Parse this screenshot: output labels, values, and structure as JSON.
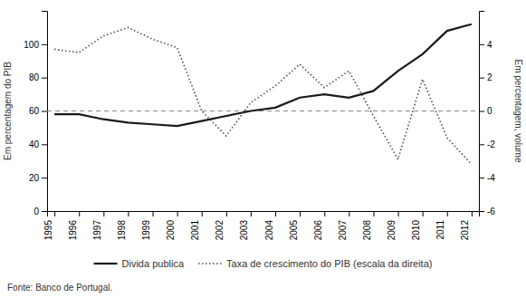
{
  "chart_data": {
    "type": "line",
    "x": [
      1995,
      1996,
      1997,
      1998,
      1999,
      2000,
      2001,
      2002,
      2003,
      2004,
      2005,
      2006,
      2007,
      2008,
      2009,
      2010,
      2011,
      2012
    ],
    "series": [
      {
        "name": "Divida publica",
        "color": "#1a1a1a",
        "line_style": "solid",
        "values": [
          58,
          58,
          55,
          53,
          52,
          51,
          54,
          57,
          60,
          62,
          68,
          70,
          68,
          72,
          84,
          94,
          108,
          112
        ]
      },
      {
        "name": "Taxa de crescimento do PIB (escala da direita)",
        "color": "#4a4a6a",
        "line_style": "dotted",
        "axis": "y2",
        "values": [
          3.7,
          3.5,
          4.5,
          5.0,
          4.3,
          3.8,
          0.0,
          -1.5,
          0.5,
          1.5,
          2.8,
          1.4,
          2.4,
          -0.3,
          -2.9,
          1.9,
          -1.6,
          -3.2
        ]
      }
    ],
    "ylabel": "Em percentagem do PIB",
    "y2label": "Em percentagem, volume",
    "xlim": [
      1994.7,
      2012.3
    ],
    "xticks": [
      1995,
      1996,
      1997,
      1998,
      1999,
      2000,
      2001,
      2002,
      2003,
      2004,
      2005,
      2006,
      2007,
      2008,
      2009,
      2010,
      2011,
      2012
    ],
    "ylim": [
      0,
      120
    ],
    "yticks": [
      0,
      20,
      40,
      60,
      80,
      100
    ],
    "y2lim": [
      -6,
      6
    ],
    "y2ticks": [
      -6,
      -4,
      -2,
      0,
      2,
      4
    ],
    "hlines": [
      {
        "axis": "y2",
        "value": 0,
        "line_style": "dashed"
      }
    ],
    "annotation": "Fonte: Banco de Portugal.",
    "grid": false,
    "legend": "bottom"
  }
}
